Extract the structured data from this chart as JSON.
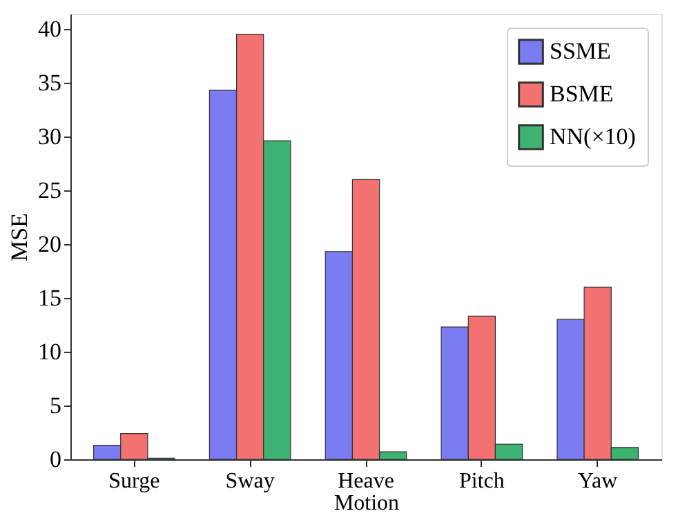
{
  "chart_data": {
    "type": "bar",
    "xlabel": "Motion",
    "ylabel": "MSE",
    "categories": [
      "Surge",
      "Sway",
      "Heave",
      "Pitch",
      "Yaw"
    ],
    "series": [
      {
        "name": "SSME",
        "color": "#7b7bf2",
        "values": [
          1.3,
          34.3,
          19.3,
          12.3,
          13.0
        ]
      },
      {
        "name": "BSME",
        "color": "#f27272",
        "values": [
          2.4,
          39.5,
          26.0,
          13.3,
          16.0
        ]
      },
      {
        "name": "NN(×10)",
        "color": "#3cb371",
        "values": [
          0.1,
          29.6,
          0.7,
          1.4,
          1.1
        ]
      }
    ],
    "ylim": [
      0,
      41.4
    ],
    "yticks": [
      0,
      5,
      10,
      15,
      20,
      25,
      30,
      35,
      40
    ],
    "grid": false,
    "legend": "top right"
  }
}
